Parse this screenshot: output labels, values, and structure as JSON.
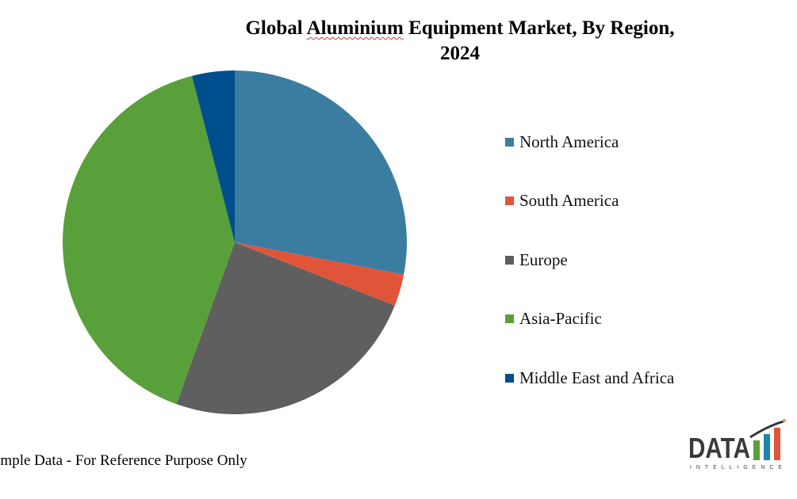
{
  "chart_data": {
    "type": "pie",
    "title_part1": "Global ",
    "title_underlined": "Aluminium",
    "title_part2": " Equipment Market, By Region,",
    "title_line2": "2024",
    "legend_position": "right",
    "slices": [
      {
        "label": "North America",
        "value": 28,
        "color": "#3b7da0"
      },
      {
        "label": "South America",
        "value": 3,
        "color": "#e0553a"
      },
      {
        "label": "Europe",
        "value": 24.5,
        "color": "#5f5f5f"
      },
      {
        "label": "Asia-Pacific",
        "value": 40.5,
        "color": "#5aa03a"
      },
      {
        "label": "Middle East and Africa",
        "value": 4,
        "color": "#004e8c"
      }
    ]
  },
  "footer_note": "ample Data - For Reference Purpose Only",
  "logo": {
    "text": "DATA",
    "subtext": "INTELLIGENCE"
  }
}
